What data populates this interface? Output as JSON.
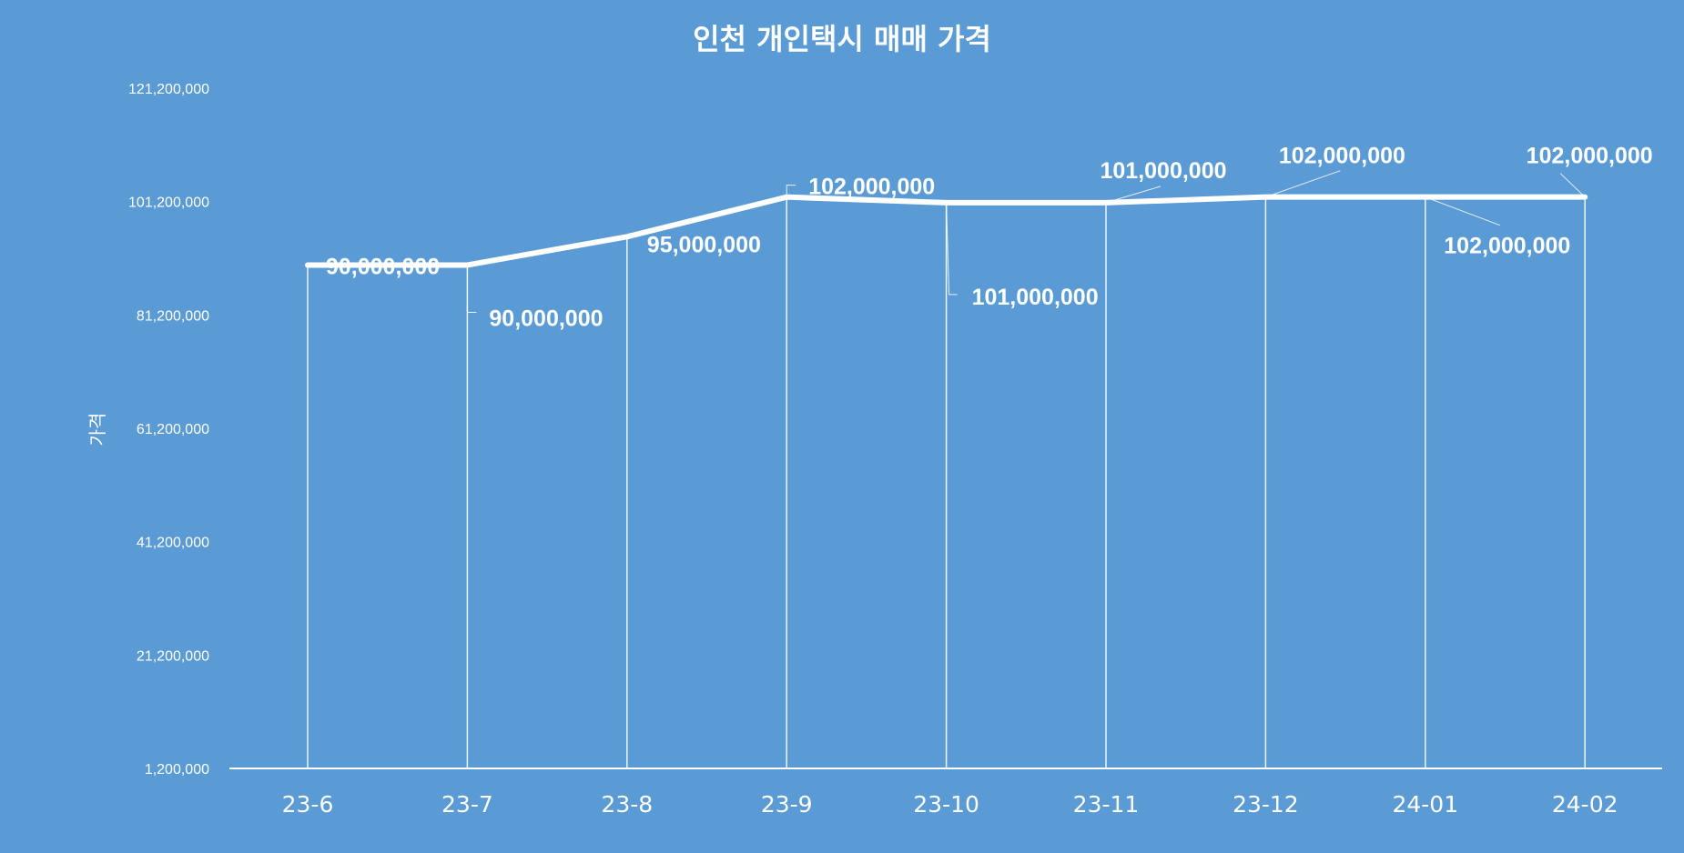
{
  "chart_data": {
    "type": "line",
    "title": "인천 개인택시 매매 가격",
    "ylabel": "가격",
    "xlabel": "",
    "categories": [
      "23-6",
      "23-7",
      "23-8",
      "23-9",
      "23-10",
      "23-11",
      "23-12",
      "24-01",
      "24-02"
    ],
    "series": [
      {
        "values": [
          90000000,
          90000000,
          95000000,
          102000000,
          101000000,
          101000000,
          102000000,
          102000000,
          102000000
        ]
      }
    ],
    "data_labels": [
      "90,000,000",
      "90,000,000",
      "95,000,000",
      "102,000,000",
      "101,000,000",
      "101,000,000",
      "102,000,000",
      "102,000,000",
      "102,000,000"
    ],
    "ylim": [
      1200000,
      121200000
    ],
    "yticks": [
      1200000,
      21200000,
      41200000,
      61200000,
      81200000,
      101200000,
      121200000
    ],
    "ytick_labels": [
      "1,200,000",
      "21,200,000",
      "41,200,000",
      "61,200,000",
      "81,200,000",
      "101,200,000",
      "121,200,000"
    ],
    "drop_lines": true,
    "grid": false,
    "legend": "none",
    "colors": {
      "background": "#5b9bd5",
      "line": "#ffffff",
      "text": "#ffffff"
    }
  }
}
